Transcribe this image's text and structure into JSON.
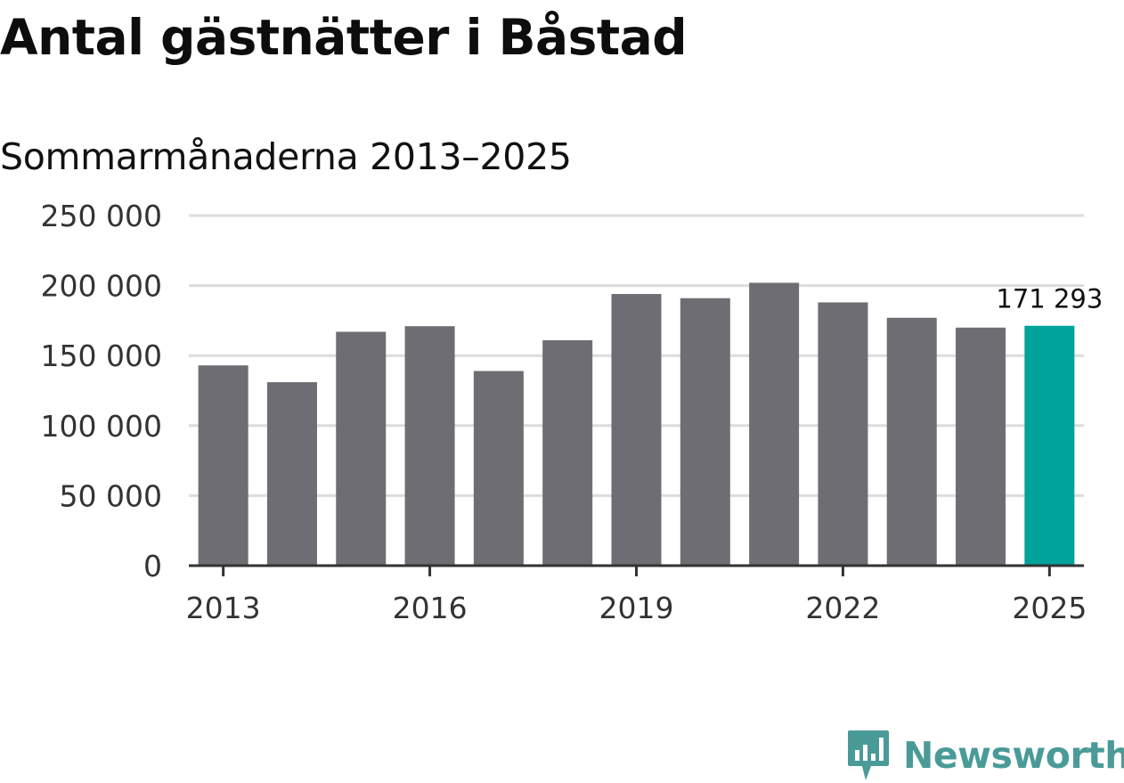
{
  "title": "Antal gästnätter i Båstad",
  "subtitle": "Sommarmånaderna 2013–2025",
  "brand": {
    "name": "Newsworthy",
    "icon": "newsworthy-logo-icon"
  },
  "colors": {
    "bar": "#6e6d73",
    "highlight": "#00a39b",
    "grid": "#dcdcdc",
    "axis": "#333333",
    "brand": "#4a9b98"
  },
  "chart_data": {
    "type": "bar",
    "title": "Antal gästnätter i Båstad",
    "subtitle": "Sommarmånaderna 2013–2025",
    "xlabel": "",
    "ylabel": "",
    "categories": [
      "2013",
      "2014",
      "2015",
      "2016",
      "2017",
      "2018",
      "2019",
      "2020",
      "2021",
      "2022",
      "2023",
      "2024",
      "2025"
    ],
    "values": [
      143000,
      131000,
      167000,
      171000,
      139000,
      161000,
      194000,
      191000,
      202000,
      188000,
      177000,
      170000,
      171293
    ],
    "highlight_index": 12,
    "data_labels": [
      {
        "category": "2025",
        "text": "171 293"
      }
    ],
    "x_tick_labels": [
      "2013",
      "2016",
      "2019",
      "2022",
      "2025"
    ],
    "y_ticks": [
      0,
      50000,
      100000,
      150000,
      200000,
      250000
    ],
    "y_tick_labels": [
      "0",
      "50 000",
      "100 000",
      "150 000",
      "200 000",
      "250 000"
    ],
    "ylim": [
      0,
      250000
    ],
    "grid": true,
    "legend": "none"
  }
}
